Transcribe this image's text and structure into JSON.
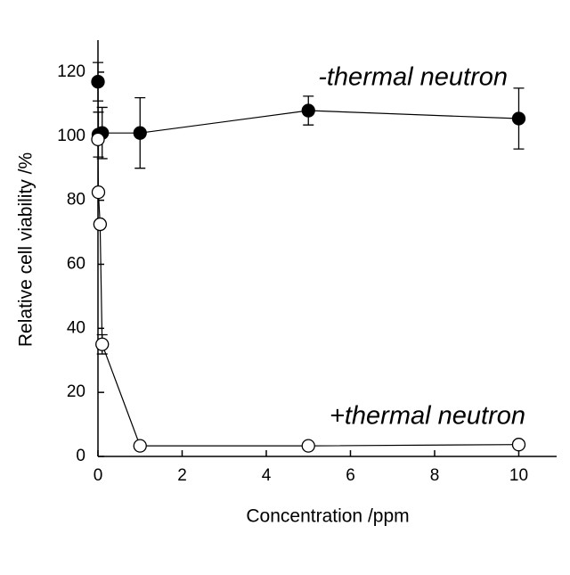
{
  "chart_data": {
    "type": "line",
    "xlabel": "Concentration /ppm",
    "ylabel": "Relative cell viability /%",
    "annotations": [
      "-thermal neutron",
      "+thermal neutron"
    ],
    "xlim": [
      0,
      10.9
    ],
    "xticks": [
      0,
      2,
      4,
      6,
      8,
      10
    ],
    "ylim": [
      0,
      130
    ],
    "yticks": [
      0,
      20,
      40,
      60,
      80,
      100,
      120
    ],
    "grid": false,
    "series": [
      {
        "name": "-thermal neutron",
        "color": "#000000",
        "filled": true,
        "x": [
          0,
          0.01,
          0.1,
          1,
          5,
          10
        ],
        "values": [
          117,
          100.5,
          101,
          101,
          108,
          105.5
        ],
        "errors": [
          6,
          7,
          8,
          11,
          4.5,
          9.5
        ]
      },
      {
        "name": "+thermal neutron",
        "color": "#000000",
        "filled": false,
        "x": [
          0,
          0.01,
          0.05,
          0.1,
          1,
          5,
          10
        ],
        "values": [
          99,
          82.5,
          72.5,
          35,
          3.3,
          3.3,
          3.7
        ],
        "errors": [
          null,
          null,
          null,
          3,
          null,
          null,
          null
        ]
      }
    ]
  }
}
